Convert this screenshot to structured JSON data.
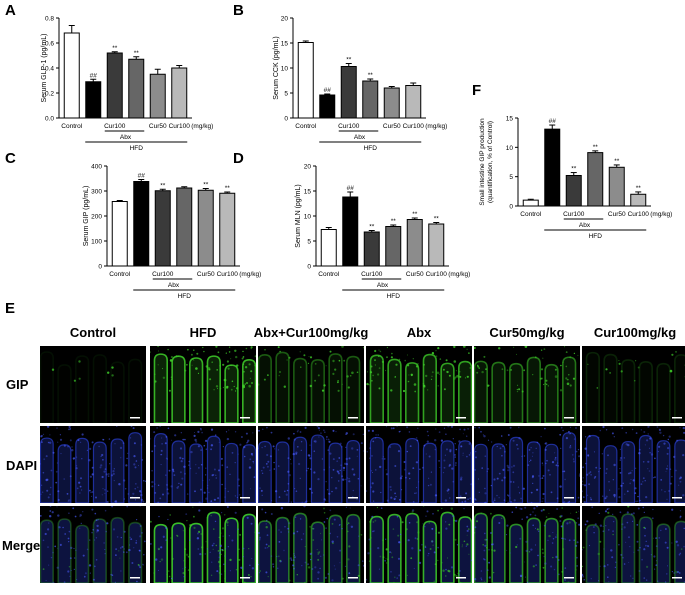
{
  "panels": {
    "A": "A",
    "B": "B",
    "C": "C",
    "D": "D",
    "E": "E",
    "F": "F"
  },
  "unit_label": "(mg/kg)",
  "chart_data": [
    {
      "id": "A",
      "type": "bar",
      "ylabel": "Serum GLP-1 (pg/mL)",
      "ylim": [
        0,
        0.8
      ],
      "yticks": [
        "0.0",
        "0.2",
        "0.4",
        "0.6",
        "0.8"
      ],
      "categories": [
        "Control",
        "HFD",
        "Abx+Cur100",
        "Abx",
        "Cur50",
        "Cur100"
      ],
      "values": [
        0.68,
        0.29,
        0.52,
        0.47,
        0.35,
        0.4
      ],
      "errors": [
        0.06,
        0.02,
        0.01,
        0.02,
        0.04,
        0.02
      ],
      "sig": [
        "",
        "##",
        "**",
        "**",
        "",
        ""
      ],
      "xlabels": {
        "control": "Control",
        "cur100": "Cur100",
        "abx": "Abx",
        "cur50": "Cur50",
        "cur100b": "Cur100",
        "hfd": "HFD"
      }
    },
    {
      "id": "B",
      "type": "bar",
      "ylabel": "Serum CCK (pg/mL)",
      "ylim": [
        0,
        20
      ],
      "yticks": [
        "0",
        "5",
        "10",
        "15",
        "20"
      ],
      "categories": [
        "Control",
        "HFD",
        "Abx+Cur100",
        "Abx",
        "Cur50",
        "Cur100"
      ],
      "values": [
        15.1,
        4.6,
        10.3,
        7.4,
        6.0,
        6.5
      ],
      "errors": [
        0.3,
        0.2,
        0.6,
        0.4,
        0.3,
        0.5
      ],
      "sig": [
        "",
        "##",
        "**",
        "**",
        "",
        ""
      ],
      "xlabels": {
        "control": "Control",
        "cur100": "Cur100",
        "abx": "Abx",
        "cur50": "Cur50",
        "cur100b": "Cur100",
        "hfd": "HFD"
      }
    },
    {
      "id": "C",
      "type": "bar",
      "ylabel": "Serum GIP (pg/mL)",
      "ylim": [
        0,
        400
      ],
      "yticks": [
        "0",
        "100",
        "200",
        "300",
        "400"
      ],
      "categories": [
        "Control",
        "HFD",
        "Abx+Cur100",
        "Abx",
        "Cur50",
        "Cur100"
      ],
      "values": [
        258,
        338,
        301,
        312,
        303,
        291
      ],
      "errors": [
        4,
        8,
        6,
        5,
        7,
        5
      ],
      "sig": [
        "",
        "##",
        "**",
        "",
        "**",
        "**"
      ],
      "xlabels": {
        "control": "Control",
        "cur100": "Cur100",
        "abx": "Abx",
        "cur50": "Cur50",
        "cur100b": "Cur100",
        "hfd": "HFD"
      }
    },
    {
      "id": "D",
      "type": "bar",
      "ylabel": "Serum MLN (pg/mL)",
      "ylim": [
        0,
        20
      ],
      "yticks": [
        "0",
        "5",
        "10",
        "15",
        "20"
      ],
      "categories": [
        "Control",
        "HFD",
        "Abx+Cur100",
        "Abx",
        "Cur50",
        "Cur100"
      ],
      "values": [
        7.3,
        13.8,
        6.8,
        7.9,
        9.3,
        8.4
      ],
      "errors": [
        0.4,
        1.0,
        0.3,
        0.3,
        0.3,
        0.3
      ],
      "sig": [
        "",
        "##",
        "**",
        "**",
        "**",
        "**"
      ],
      "xlabels": {
        "control": "Control",
        "cur100": "Cur100",
        "abx": "Abx",
        "cur50": "Cur50",
        "cur100b": "Cur100",
        "hfd": "HFD"
      }
    },
    {
      "id": "F",
      "type": "bar",
      "ylabel": "Small intestine GIP production (quantification, % of Control)",
      "ylabel_lines": [
        "Small intestine GIP production",
        "(quantification, % of Control)"
      ],
      "ylim": [
        0,
        15
      ],
      "yticks": [
        "0",
        "5",
        "10",
        "15"
      ],
      "categories": [
        "Control",
        "HFD",
        "Abx+Cur100",
        "Abx",
        "Cur50",
        "Cur100"
      ],
      "values": [
        1.0,
        13.1,
        5.2,
        9.1,
        6.6,
        2.0
      ],
      "errors": [
        0.15,
        0.7,
        0.5,
        0.3,
        0.4,
        0.4
      ],
      "sig": [
        "",
        "##",
        "**",
        "**",
        "**",
        "**"
      ],
      "xlabels": {
        "control": "Control",
        "cur100": "Cur100",
        "abx": "Abx",
        "cur50": "Cur50",
        "cur100b": "Cur100",
        "hfd": "HFD"
      }
    }
  ],
  "micrographs": {
    "columns": [
      "Control",
      "HFD",
      "Abx+Cur100mg/kg",
      "Abx",
      "Cur50mg/kg",
      "Cur100mg/kg"
    ],
    "rows": [
      "GIP",
      "DAPI",
      "Merge"
    ],
    "gip_intensity": [
      0.08,
      0.95,
      0.45,
      0.85,
      0.6,
      0.18
    ],
    "colors": {
      "gip": "#3fcf2a",
      "dapi": "#2a3fd0",
      "background": "#000000",
      "scalebar": "#ffffff"
    }
  }
}
